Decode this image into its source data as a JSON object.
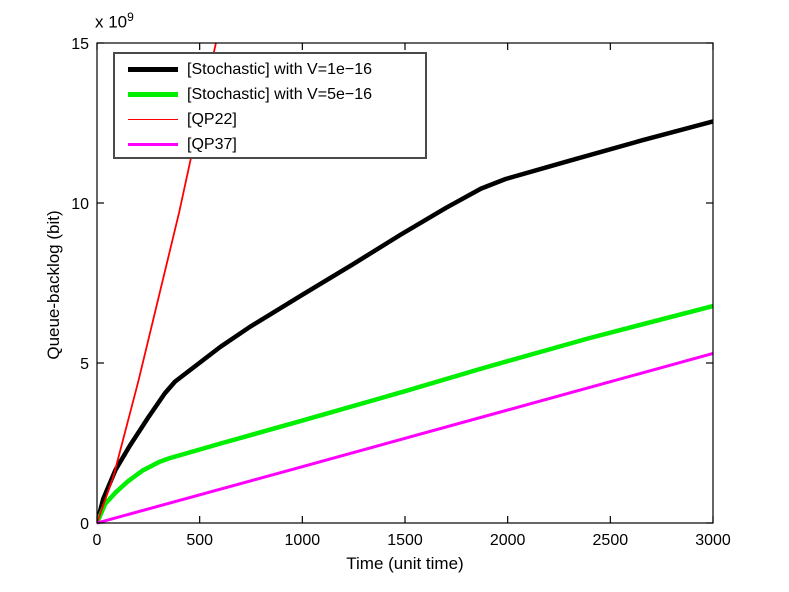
{
  "chart_data": {
    "type": "line",
    "title": "",
    "xlabel": "Time (unit time)",
    "ylabel": "Queue-backlog (bit)",
    "y_exponent_prefix": "x 10",
    "y_exponent": "9",
    "y_unit_scale": "1e9",
    "xlim": [
      0,
      3000
    ],
    "ylim": [
      0,
      15
    ],
    "x_ticks": [
      0,
      500,
      1000,
      1500,
      2000,
      2500,
      3000
    ],
    "x_tick_labels": [
      "0",
      "500",
      "1000",
      "1500",
      "2000",
      "2500",
      "3000"
    ],
    "y_ticks": [
      0,
      5,
      10,
      15
    ],
    "y_tick_labels": [
      "0",
      "5",
      "10",
      "15"
    ],
    "grid": false,
    "legend_position": "top-left",
    "axis_color": "#000000",
    "series": [
      {
        "name": "[Stochastic] with V=1e−16",
        "color": "#000000",
        "width": 4.5,
        "points": [
          [
            0,
            0
          ],
          [
            30,
            0.75
          ],
          [
            90,
            1.66
          ],
          [
            160,
            2.42
          ],
          [
            250,
            3.3
          ],
          [
            330,
            4.05
          ],
          [
            380,
            4.42
          ],
          [
            600,
            5.5
          ],
          [
            745,
            6.13
          ],
          [
            1000,
            7.13
          ],
          [
            1250,
            8.1
          ],
          [
            1476,
            9.0
          ],
          [
            1700,
            9.85
          ],
          [
            1870,
            10.45
          ],
          [
            1990,
            10.75
          ],
          [
            2300,
            11.32
          ],
          [
            2650,
            11.95
          ],
          [
            3000,
            12.55
          ]
        ]
      },
      {
        "name": "[Stochastic] with V=5e−16",
        "color": "#00ee00",
        "width": 4.5,
        "points": [
          [
            0,
            0
          ],
          [
            40,
            0.6
          ],
          [
            90,
            0.95
          ],
          [
            150,
            1.3
          ],
          [
            220,
            1.63
          ],
          [
            300,
            1.9
          ],
          [
            350,
            2.02
          ],
          [
            600,
            2.48
          ],
          [
            1000,
            3.2
          ],
          [
            1500,
            4.12
          ],
          [
            1880,
            4.84
          ],
          [
            2400,
            5.78
          ],
          [
            3000,
            6.78
          ]
        ]
      },
      {
        "name": "[QP22]",
        "color": "#ff0000",
        "width": 1.8,
        "points": [
          [
            0,
            0
          ],
          [
            80,
            1.45
          ],
          [
            200,
            4.4
          ],
          [
            400,
            9.7
          ],
          [
            586,
            15.2
          ],
          [
            630,
            16.4
          ]
        ]
      },
      {
        "name": "[QP37]",
        "color": "#ff00ff",
        "width": 3,
        "points": [
          [
            0,
            0
          ],
          [
            1000,
            1.76
          ],
          [
            2000,
            3.53
          ],
          [
            3000,
            5.3
          ]
        ]
      }
    ]
  }
}
